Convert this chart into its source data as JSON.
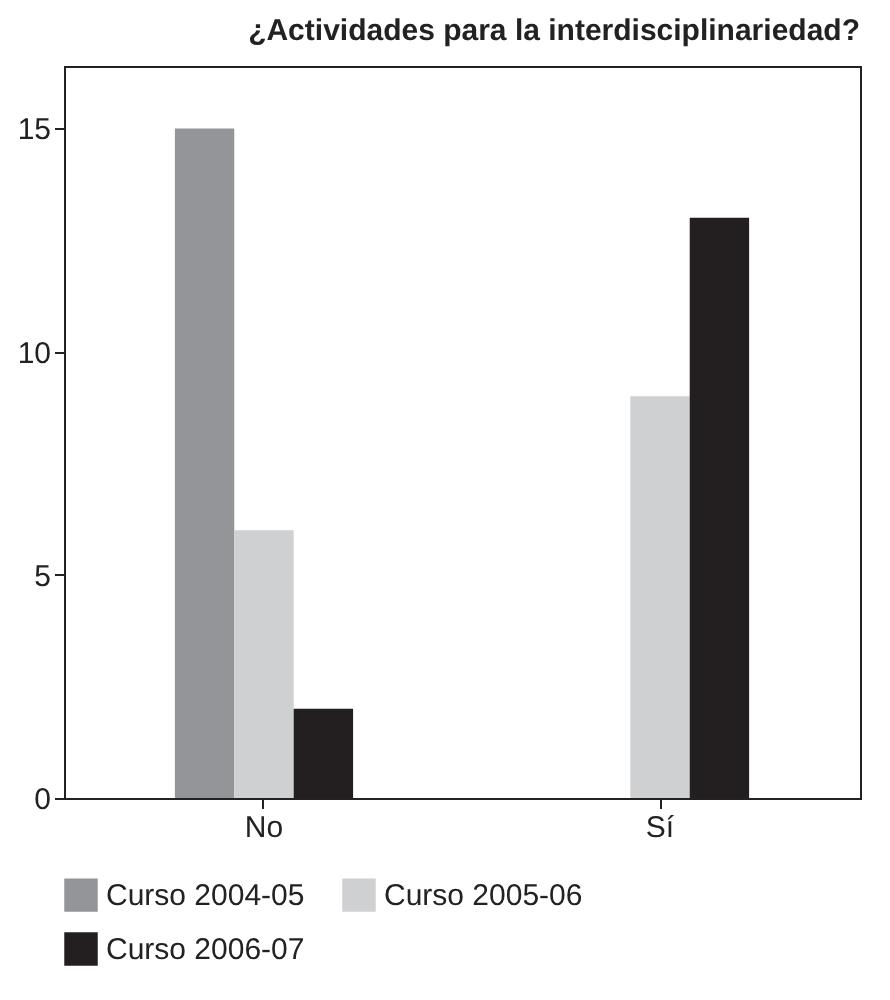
{
  "chart_data": {
    "type": "bar",
    "title": "¿Actividades para la interdisciplinariedad?",
    "categories": [
      "No",
      "Sí"
    ],
    "series": [
      {
        "name": "Curso 2004-05",
        "color": "#939598",
        "values": [
          15,
          0
        ]
      },
      {
        "name": "Curso 2005-06",
        "color": "#cfd0d2",
        "values": [
          6,
          9
        ]
      },
      {
        "name": "Curso 2006-07",
        "color": "#231f20",
        "values": [
          2,
          13
        ]
      }
    ],
    "ylim": [
      0,
      16.4
    ],
    "yticks": [
      0,
      5,
      10,
      15
    ],
    "grid": false,
    "legend": "bottom"
  }
}
